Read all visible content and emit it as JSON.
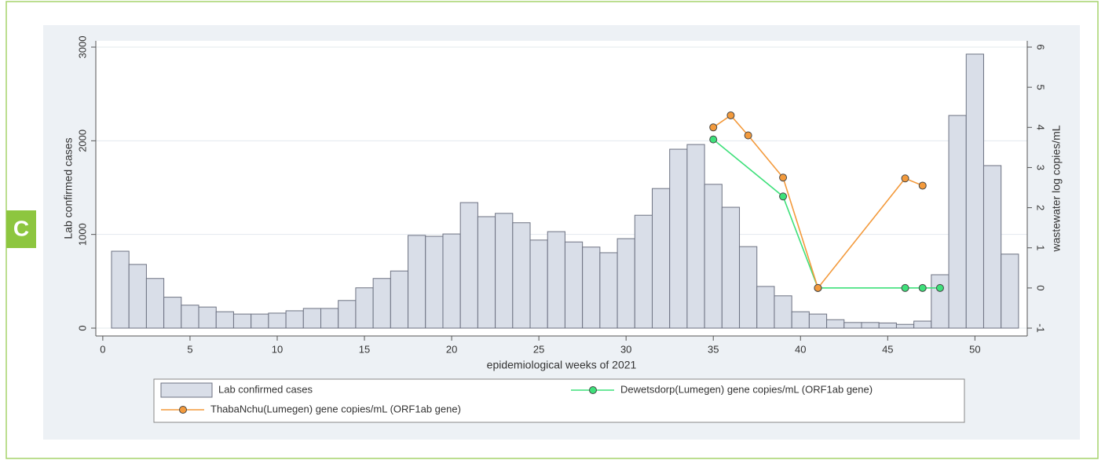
{
  "panel_label": "C",
  "chart_data": {
    "type": "bar",
    "xlabel": "epidemiological weeks of 2021",
    "ylabel": "Lab confirmed cases",
    "y2label": "wastewater log copies/mL",
    "xlim": [
      -0.4,
      53
    ],
    "xticks": [
      0,
      5,
      10,
      15,
      20,
      25,
      30,
      35,
      40,
      45,
      50
    ],
    "ylim": [
      0,
      3000
    ],
    "yticks": [
      0,
      1000,
      2000,
      3000
    ],
    "y2lim": [
      -1,
      6
    ],
    "y2ticks": [
      -1,
      0,
      1,
      2,
      3,
      4,
      5,
      6
    ],
    "grid": true,
    "legend": "bottom",
    "series": [
      {
        "name": "Lab confirmed cases",
        "type": "bar",
        "color": "#d9dee8",
        "x": [
          1,
          2,
          3,
          4,
          5,
          6,
          7,
          8,
          9,
          10,
          11,
          12,
          13,
          14,
          15,
          16,
          17,
          18,
          19,
          20,
          21,
          22,
          23,
          24,
          25,
          26,
          27,
          28,
          29,
          30,
          31,
          32,
          33,
          34,
          35,
          36,
          37,
          38,
          39,
          40,
          41,
          42,
          43,
          44,
          45,
          46,
          47,
          48,
          49,
          50,
          51,
          52
        ],
        "values": [
          821,
          680,
          530,
          330,
          245,
          225,
          175,
          150,
          150,
          160,
          185,
          210,
          210,
          295,
          430,
          530,
          610,
          990,
          980,
          1005,
          1340,
          1190,
          1225,
          1125,
          940,
          1030,
          920,
          865,
          805,
          955,
          1205,
          1490,
          1910,
          1960,
          1535,
          1290,
          870,
          445,
          345,
          175,
          150,
          90,
          60,
          60,
          55,
          40,
          75,
          570,
          2270,
          2925,
          1735,
          790
        ]
      },
      {
        "name": "Dewetsdorp(Lumegen) gene copies/mL (ORF1ab gene)",
        "type": "line",
        "axis": "y2",
        "color": "#3ee07a",
        "x": [
          35,
          39,
          41,
          46,
          47,
          48
        ],
        "values": [
          3.7,
          2.28,
          0,
          0,
          0,
          0
        ]
      },
      {
        "name": "ThabaNchu(Lumegen) gene copies/mL (ORF1ab gene)",
        "type": "line",
        "axis": "y2",
        "color": "#f39a3c",
        "x": [
          35,
          36,
          37,
          39,
          41,
          46,
          47
        ],
        "values": [
          4.0,
          4.3,
          3.8,
          2.75,
          0,
          2.73,
          2.55
        ]
      }
    ]
  }
}
